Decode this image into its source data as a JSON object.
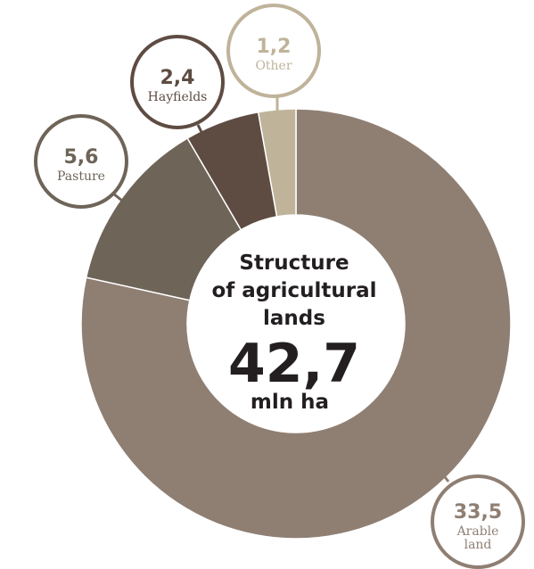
{
  "chart_data": {
    "type": "pie",
    "title_lines": [
      "Structure",
      "of agricultural",
      "lands"
    ],
    "total": "42,7",
    "unit": "mln ha",
    "slices": [
      {
        "value": 33.5,
        "value_label": "33,5",
        "label_lines": [
          "Arable",
          "land"
        ],
        "color": "#8f7f73",
        "text_color": "#8f7f73"
      },
      {
        "value": 5.6,
        "value_label": "5,6",
        "label_lines": [
          "Pasture"
        ],
        "color": "#6e6458",
        "text_color": "#6e6458"
      },
      {
        "value": 2.4,
        "value_label": "2,4",
        "label_lines": [
          "Hayfields"
        ],
        "color": "#5e4c43",
        "text_color": "#5e4c43"
      },
      {
        "value": 1.2,
        "value_label": "1,2",
        "label_lines": [
          "Other"
        ],
        "color": "#bfb39a",
        "text_color": "#bfb39a"
      }
    ]
  }
}
